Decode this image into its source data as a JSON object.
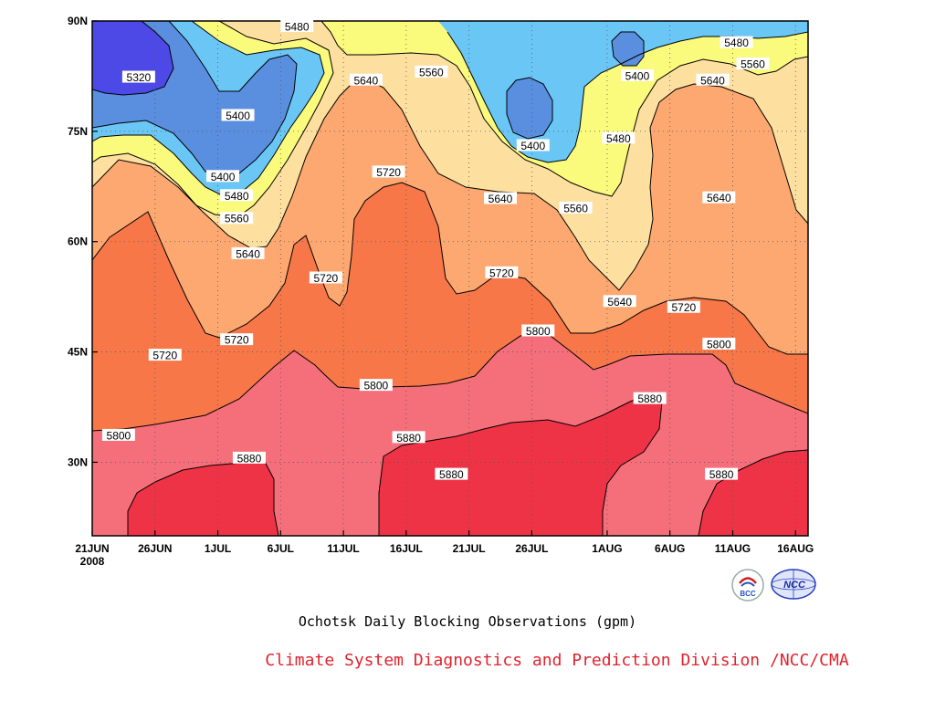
{
  "chart_data": {
    "type": "contour",
    "title": "Ochotsk Daily Blocking Observations (gpm)",
    "subtitle": "Climate System Diagnostics and Prediction Division /NCC/CMA",
    "x_tick_labels": [
      "21JUN",
      "26JUN",
      "1JUL",
      "6JUL",
      "11JUL",
      "16JUL",
      "21JUL",
      "26JUL",
      "1AUG",
      "6AUG",
      "11AUG",
      "16AUG"
    ],
    "x_tick_days": [
      0,
      5,
      10,
      15,
      20,
      25,
      30,
      35,
      41,
      46,
      51,
      56
    ],
    "x_year_label": "2008",
    "x_range_days": [
      0,
      57
    ],
    "y_tick_labels": [
      "90N",
      "75N",
      "60N",
      "45N",
      "30N"
    ],
    "y_tick_values": [
      90,
      75,
      60,
      45,
      30
    ],
    "y_range": [
      20,
      90
    ],
    "grid": "dotted",
    "contour_levels": [
      5320,
      5400,
      5480,
      5560,
      5640,
      5720,
      5800,
      5880
    ],
    "contour_labels": [
      {
        "text": "5480",
        "day": 16.3,
        "lat": 89.2
      },
      {
        "text": "5320",
        "day": 3.7,
        "lat": 82.3
      },
      {
        "text": "5400",
        "day": 11.6,
        "lat": 77.1
      },
      {
        "text": "5640",
        "day": 21.8,
        "lat": 81.9
      },
      {
        "text": "5560",
        "day": 27.0,
        "lat": 83.0
      },
      {
        "text": "5400",
        "day": 35.1,
        "lat": 73.0
      },
      {
        "text": "5400",
        "day": 43.4,
        "lat": 82.5
      },
      {
        "text": "5480",
        "day": 51.3,
        "lat": 87.0
      },
      {
        "text": "5560",
        "day": 52.6,
        "lat": 84.1
      },
      {
        "text": "5640",
        "day": 49.4,
        "lat": 81.9
      },
      {
        "text": "5480",
        "day": 41.9,
        "lat": 74.0
      },
      {
        "text": "5400",
        "day": 10.4,
        "lat": 68.8
      },
      {
        "text": "5480",
        "day": 11.5,
        "lat": 66.2
      },
      {
        "text": "5560",
        "day": 11.5,
        "lat": 63.1
      },
      {
        "text": "5720",
        "day": 23.6,
        "lat": 69.4
      },
      {
        "text": "5640",
        "day": 32.5,
        "lat": 65.8
      },
      {
        "text": "5560",
        "day": 38.5,
        "lat": 64.5
      },
      {
        "text": "5640",
        "day": 49.9,
        "lat": 65.9
      },
      {
        "text": "5640",
        "day": 12.4,
        "lat": 58.3
      },
      {
        "text": "5720",
        "day": 18.6,
        "lat": 55.0
      },
      {
        "text": "5720",
        "day": 32.6,
        "lat": 55.7
      },
      {
        "text": "5640",
        "day": 42.0,
        "lat": 51.8
      },
      {
        "text": "5720",
        "day": 47.1,
        "lat": 51.0
      },
      {
        "text": "5720",
        "day": 11.5,
        "lat": 46.6
      },
      {
        "text": "5720",
        "day": 5.8,
        "lat": 44.5
      },
      {
        "text": "5800",
        "day": 35.5,
        "lat": 47.8
      },
      {
        "text": "5800",
        "day": 49.9,
        "lat": 46.0
      },
      {
        "text": "5800",
        "day": 22.6,
        "lat": 40.4
      },
      {
        "text": "5880",
        "day": 44.4,
        "lat": 38.6
      },
      {
        "text": "5800",
        "day": 2.1,
        "lat": 33.6
      },
      {
        "text": "5880",
        "day": 25.2,
        "lat": 33.3
      },
      {
        "text": "5880",
        "day": 12.5,
        "lat": 30.5
      },
      {
        "text": "5880",
        "day": 28.6,
        "lat": 28.3
      },
      {
        "text": "5880",
        "day": 50.1,
        "lat": 28.3
      }
    ],
    "colors": {
      "below_5320": "#4c49e6",
      "5320_5400": "#5a8fe0",
      "5400_5480": "#6ac6f5",
      "5480_5560": "#fafa7c",
      "5560_5640": "#fde0a0",
      "5640_5720": "#fca870",
      "5720_5800": "#f77748",
      "5800_5880": "#f56f7a",
      "above_5880": "#ef3346"
    }
  },
  "logos": {
    "bcc_text": "BCC",
    "ncc_text": "NCC"
  }
}
